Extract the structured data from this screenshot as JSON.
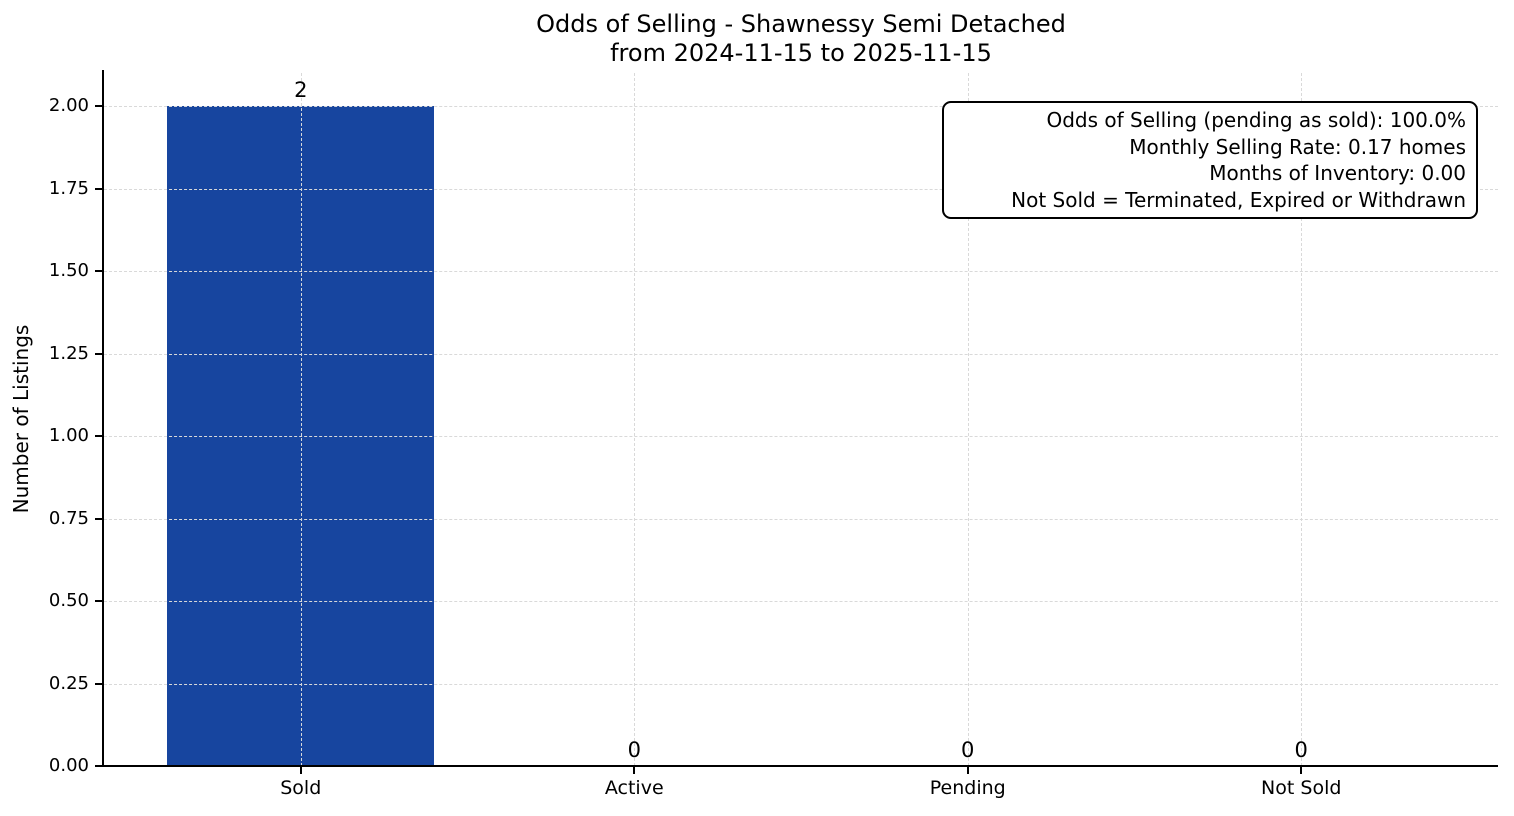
{
  "chart_data": {
    "type": "bar",
    "title": "Odds of Selling - Shawnessy Semi Detached from 2024-11-15 to 2025-11-15",
    "title_lines": [
      "Odds of Selling - Shawnessy Semi Detached",
      "from 2024-11-15 to 2025-11-15"
    ],
    "categories": [
      "Sold",
      "Active",
      "Pending",
      "Not Sold"
    ],
    "values": [
      2,
      0,
      0,
      0
    ],
    "bar_value_labels": [
      "2",
      "0",
      "0",
      "0"
    ],
    "xlabel": "",
    "ylabel": "Number of Listings",
    "ylim": [
      0,
      2.1
    ],
    "xlim": [
      -0.59,
      3.59
    ],
    "yticks": [
      0,
      0.25,
      0.5,
      0.75,
      1,
      1.25,
      1.5,
      1.75,
      2
    ],
    "ytick_labels": [
      "0.00",
      "0.25",
      "0.50",
      "0.75",
      "1.00",
      "1.25",
      "1.50",
      "1.75",
      "2.00"
    ],
    "grid": true,
    "grid_linestyle": "dashed",
    "legend": false,
    "bar_width_fraction": 0.8,
    "colors": {
      "bar": "#17459F",
      "grid": "#d9d9d9",
      "spine": "#000000",
      "text": "#000000",
      "background": "#ffffff"
    },
    "annotation_box": {
      "position": "top-right",
      "text_align": "right",
      "lines": [
        "Odds of Selling (pending as sold): 100.0%",
        "Monthly Selling Rate: 0.17 homes",
        "Months of Inventory: 0.00",
        "Not Sold = Terminated, Expired or Withdrawn"
      ]
    }
  }
}
